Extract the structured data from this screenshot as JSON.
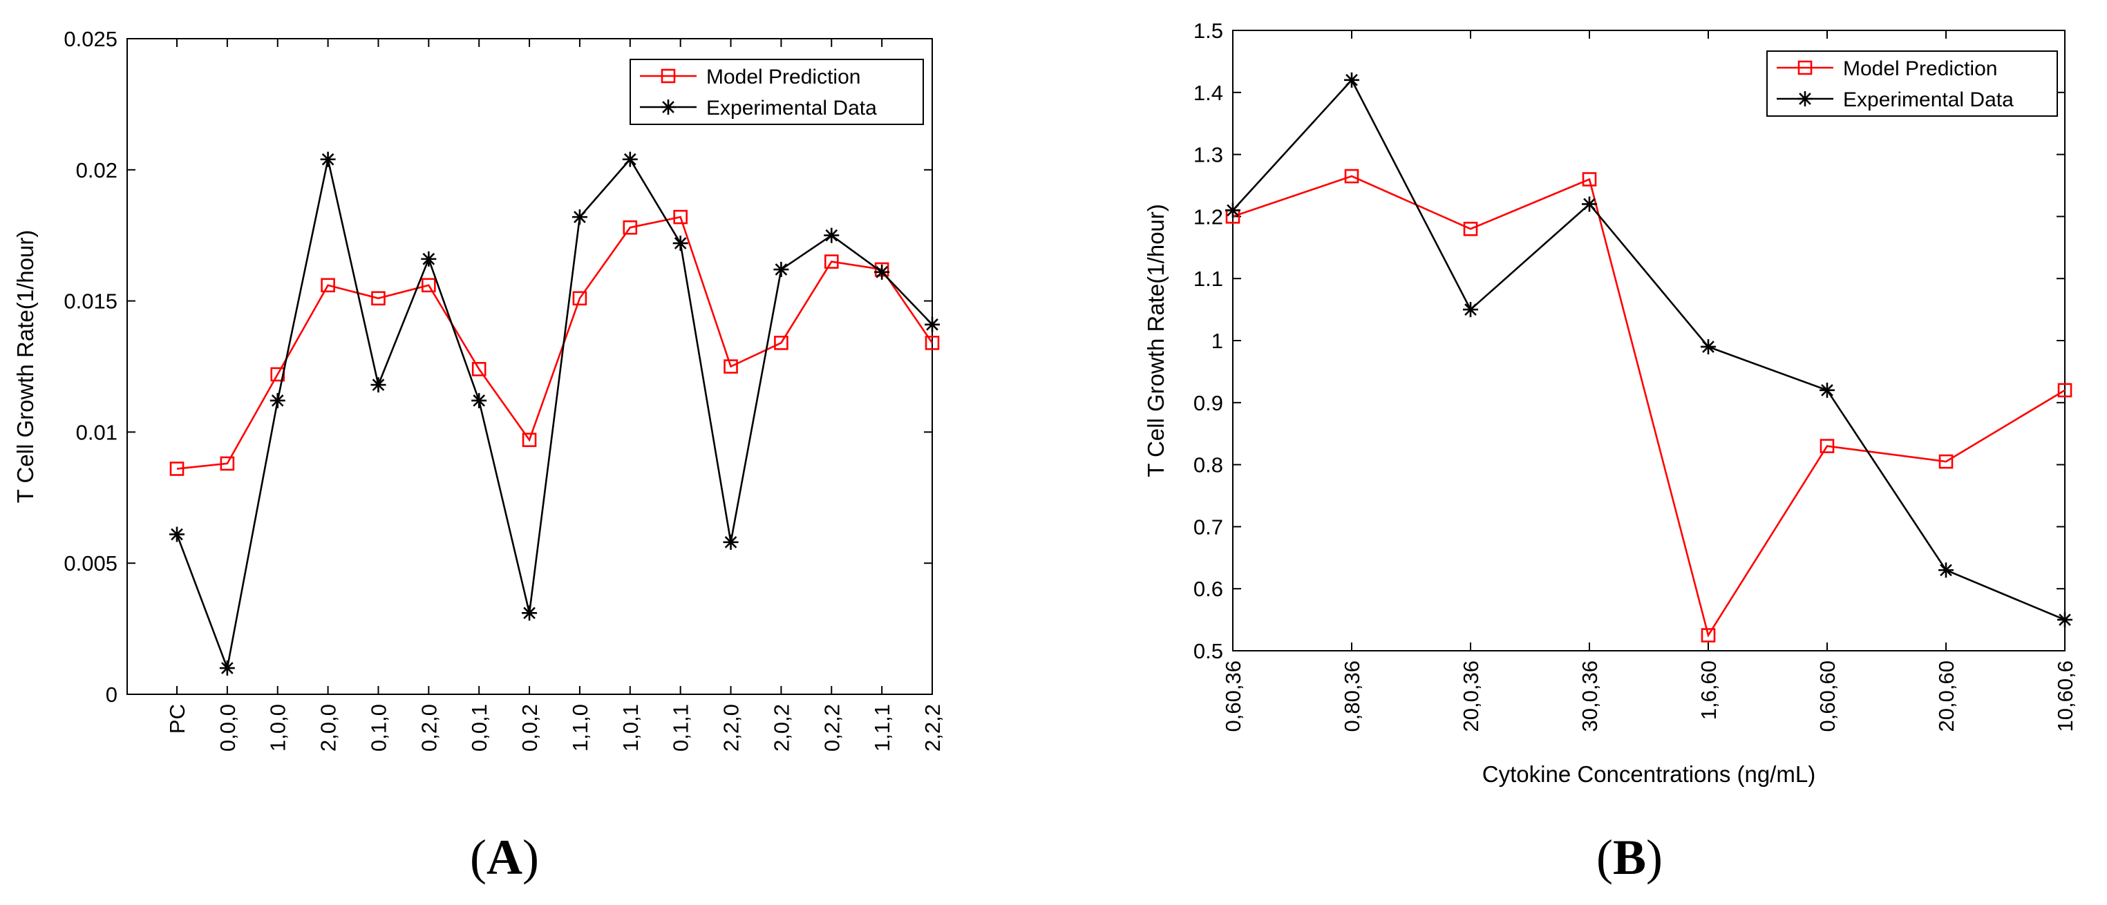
{
  "colors": {
    "model": "#ff0000",
    "experimental": "#000000",
    "axis": "#000000",
    "background": "#ffffff"
  },
  "chart_data": [
    {
      "type": "line",
      "panel_label": "A",
      "xlabel": "",
      "ylabel": "T Cell Growth Rate(1/hour)",
      "ylim": [
        0,
        0.025
      ],
      "yticks": [
        "0",
        "0.005",
        "0.01",
        "0.015",
        "0.02",
        "0.025"
      ],
      "ytick_values": [
        0,
        0.005,
        0.01,
        0.015,
        0.02,
        0.025
      ],
      "categories": [
        "PC",
        "0,0,0",
        "1,0,0",
        "2,0,0",
        "0,1,0",
        "0,2,0",
        "0,0,1",
        "0,0,2",
        "1,1,0",
        "1,0,1",
        "0,1,1",
        "2,2,0",
        "2,0,2",
        "0,2,2",
        "1,1,1",
        "2,2,2"
      ],
      "legend": [
        "Model Prediction",
        "Experimental Data"
      ],
      "legend_position": "top-right",
      "series": [
        {
          "name": "Model Prediction",
          "marker": "square",
          "values": [
            0.0086,
            0.0088,
            0.0122,
            0.0156,
            0.0151,
            0.0156,
            0.0124,
            0.0097,
            0.0151,
            0.0178,
            0.0182,
            0.0125,
            0.0134,
            0.0165,
            0.0162,
            0.0134
          ]
        },
        {
          "name": "Experimental Data",
          "marker": "asterisk",
          "values": [
            0.0061,
            0.001,
            0.0112,
            0.0204,
            0.0118,
            0.0166,
            0.0112,
            0.0031,
            0.0182,
            0.0204,
            0.0172,
            0.0058,
            0.0162,
            0.0175,
            0.0161,
            0.0141
          ]
        }
      ]
    },
    {
      "type": "line",
      "panel_label": "B",
      "xlabel": "Cytokine Concentrations (ng/mL)",
      "ylabel": "T Cell Growth Rate(1/hour)",
      "ylim": [
        0.5,
        1.5
      ],
      "yticks": [
        "0.5",
        "0.6",
        "0.7",
        "0.8",
        "0.9",
        "1",
        "1.1",
        "1.2",
        "1.3",
        "1.4",
        "1.5"
      ],
      "ytick_values": [
        0.5,
        0.6,
        0.7,
        0.8,
        0.9,
        1.0,
        1.1,
        1.2,
        1.3,
        1.4,
        1.5
      ],
      "categories": [
        "0,60,36",
        "0,80,36",
        "20,0,36",
        "30,0,36",
        "1,6,60",
        "0,60,60",
        "20,0,60",
        "10,60,6"
      ],
      "legend": [
        "Model Prediction",
        "Experimental Data"
      ],
      "legend_position": "top-right",
      "series": [
        {
          "name": "Model Prediction",
          "marker": "square",
          "values": [
            1.2,
            1.265,
            1.18,
            1.26,
            0.525,
            0.83,
            0.805,
            0.92
          ]
        },
        {
          "name": "Experimental Data",
          "marker": "asterisk",
          "values": [
            1.21,
            1.42,
            1.05,
            1.22,
            0.99,
            0.92,
            0.63,
            0.55
          ]
        }
      ]
    }
  ]
}
